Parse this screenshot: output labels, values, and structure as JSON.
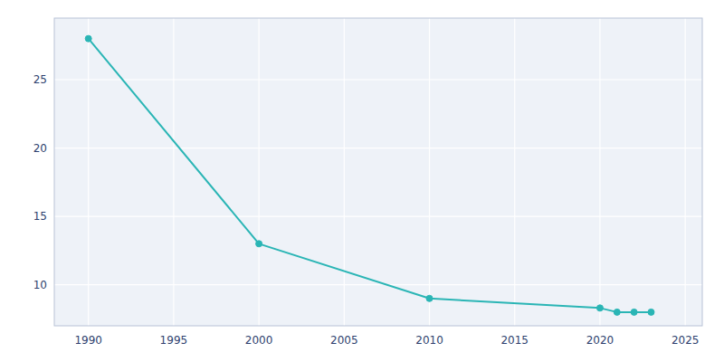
{
  "chart_data": {
    "type": "line",
    "x": [
      1990,
      2000,
      2010,
      2020,
      2021,
      2022,
      2023
    ],
    "values": [
      28,
      13,
      9,
      8.3,
      8.0,
      8.0,
      8.0
    ],
    "color": "#2ab5b5",
    "marker": "circle",
    "xlim": [
      1988,
      2026
    ],
    "ylim": [
      7,
      29.5
    ],
    "xticks": [
      1990,
      1995,
      2000,
      2005,
      2010,
      2015,
      2020,
      2025
    ],
    "yticks": [
      10,
      15,
      20,
      25
    ],
    "grid": true
  }
}
